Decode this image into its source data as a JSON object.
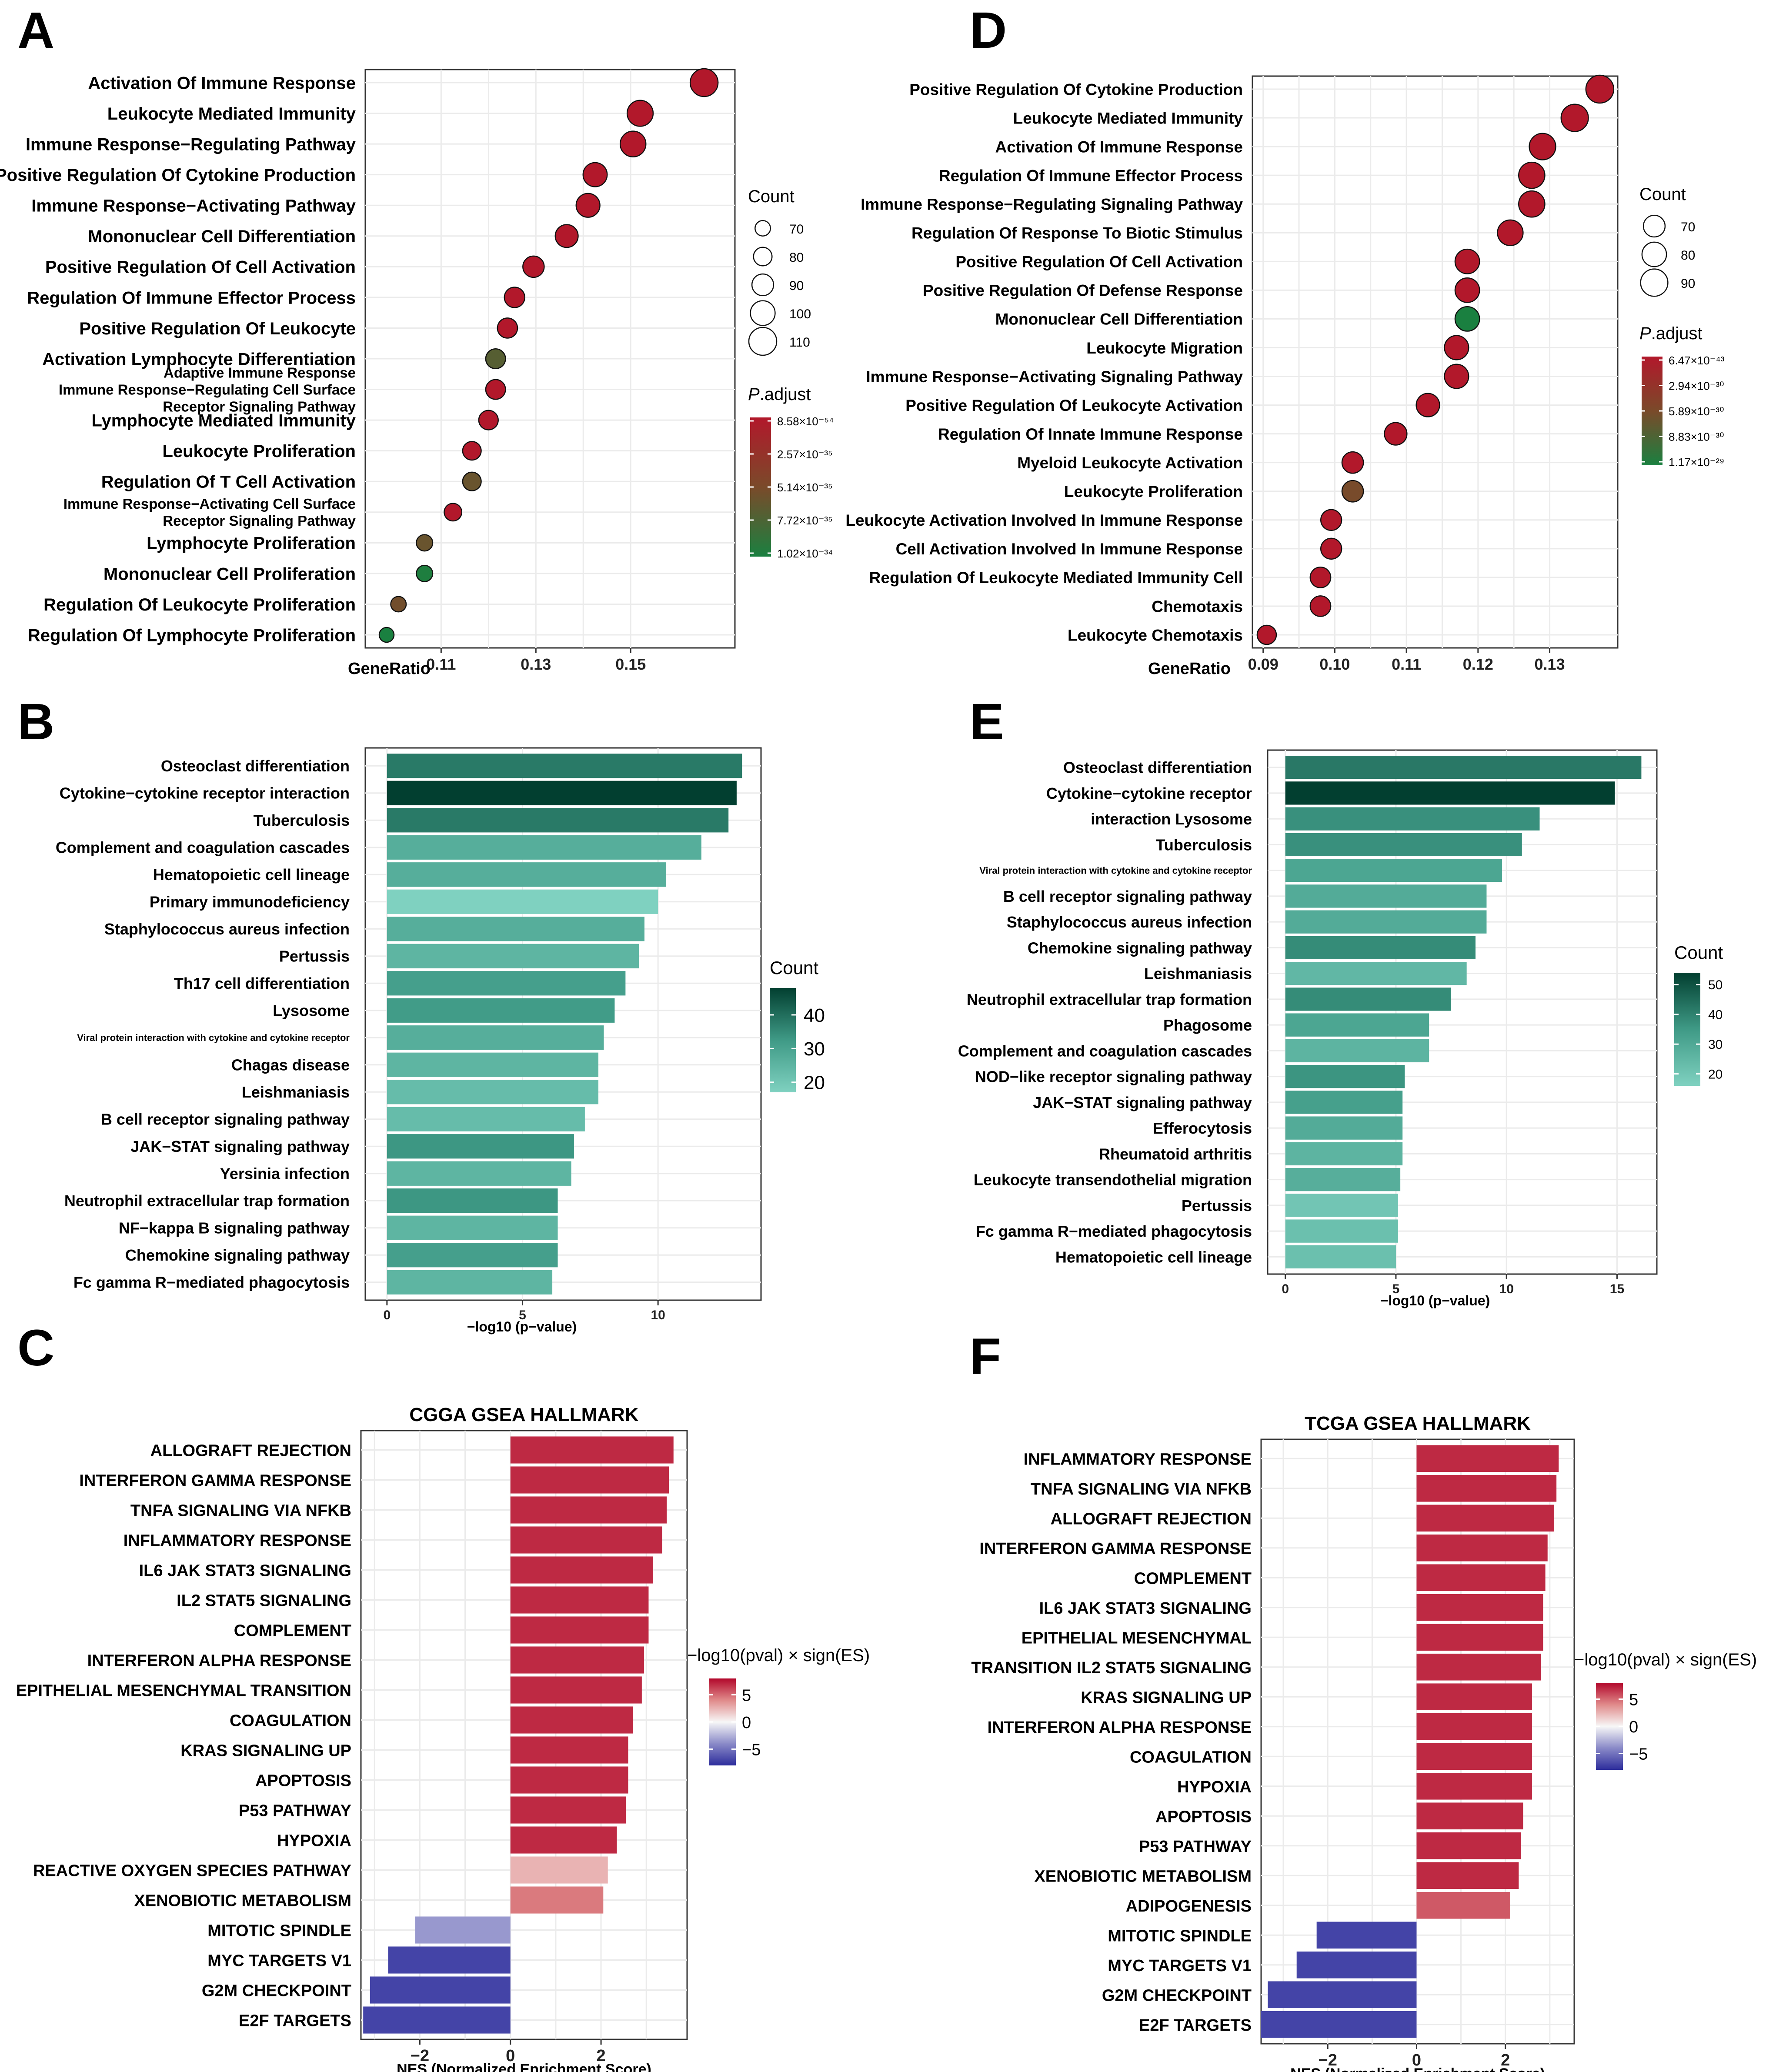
{
  "chart_data": [
    {
      "panel": "A",
      "type": "scatter",
      "xlabel": "GeneRatio",
      "x_ticks": [
        0.11,
        0.13,
        0.15
      ],
      "xlim": [
        0.094,
        0.172
      ],
      "terms": [
        {
          "label": "Activation Of Immune Response",
          "x": 0.1655,
          "count": 110,
          "p": 8.58e-54
        },
        {
          "label": "Leukocyte Mediated Immunity",
          "x": 0.152,
          "count": 104,
          "p": 8.58e-54
        },
        {
          "label": "Immune Response−Regulating Pathway",
          "x": 0.1505,
          "count": 103,
          "p": 8.58e-54
        },
        {
          "label": "Positive Regulation Of Cytokine Production",
          "x": 0.1425,
          "count": 98,
          "p": 8.58e-54
        },
        {
          "label": "Immune Response−Activating Pathway",
          "x": 0.141,
          "count": 97,
          "p": 8.58e-54
        },
        {
          "label": "Mononuclear Cell Differentiation",
          "x": 0.1365,
          "count": 94,
          "p": 8.58e-54
        },
        {
          "label": "Positive Regulation Of Cell Activation",
          "x": 0.1295,
          "count": 89,
          "p": 8.58e-54
        },
        {
          "label": "Regulation Of Immune Effector Process",
          "x": 0.1255,
          "count": 86,
          "p": 8.58e-54
        },
        {
          "label": "Positive Regulation Of Leukocyte",
          "x": 0.124,
          "count": 85,
          "p": 8.58e-54
        },
        {
          "label": "Activation Lymphocyte Differentiation",
          "x": 0.1215,
          "count": 84,
          "p": 7e-35
        },
        {
          "label": [
            "Adaptive Immune Response",
            "Immune Response−Regulating Cell Surface",
            "Receptor Signaling Pathway"
          ],
          "x": 0.1215,
          "count": 84,
          "p": 8.58e-54
        },
        {
          "label": "Lymphocyte Mediated Immunity",
          "x": 0.12,
          "count": 83,
          "p": 8.58e-54
        },
        {
          "label": "Leukocyte Proliferation",
          "x": 0.1165,
          "count": 80,
          "p": 8.58e-54
        },
        {
          "label": "Regulation Of T Cell Activation",
          "x": 0.1165,
          "count": 80,
          "p": 6e-35
        },
        {
          "label": [
            "Immune Response−Activating Cell Surface",
            "Receptor Signaling Pathway"
          ],
          "x": 0.1125,
          "count": 77,
          "p": 8.58e-54
        },
        {
          "label": "Lymphocyte Proliferation",
          "x": 0.1065,
          "count": 73,
          "p": 6e-35
        },
        {
          "label": "Mononuclear Cell Proliferation",
          "x": 0.1065,
          "count": 73,
          "p": 1e-34
        },
        {
          "label": "Regulation Of Leukocyte Proliferation",
          "x": 0.101,
          "count": 70,
          "p": 5.5e-35
        },
        {
          "label": "Regulation Of Lymphocyte Proliferation",
          "x": 0.0985,
          "count": 68,
          "p": 1.02e-34
        }
      ],
      "size_legend": {
        "title": "Count",
        "values": [
          70,
          80,
          90,
          100,
          110
        ]
      },
      "color_legend": {
        "title_italic": "P",
        "title_rest": ".adjust",
        "labels": [
          "8.58×10⁻⁵⁴",
          "2.57×10⁻³⁵",
          "5.14×10⁻³⁵",
          "7.72×10⁻³⁵",
          "1.02×10⁻³⁴"
        ],
        "range": [
          8.58e-54,
          1.02e-34
        ]
      }
    },
    {
      "panel": "D",
      "type": "scatter",
      "xlabel": "GeneRatio",
      "x_ticks": [
        0.09,
        0.1,
        0.11,
        0.12,
        0.13
      ],
      "xlim": [
        0.0885,
        0.1395
      ],
      "terms": [
        {
          "label": "Positive Regulation Of Cytokine Production",
          "x": 0.137,
          "count": 92,
          "p": 6.47e-43
        },
        {
          "label": "Leukocyte Mediated Immunity",
          "x": 0.1335,
          "count": 90,
          "p": 6.47e-43
        },
        {
          "label": "Activation Of Immune Response",
          "x": 0.129,
          "count": 87,
          "p": 6.47e-43
        },
        {
          "label": "Regulation Of Immune Effector Process",
          "x": 0.1275,
          "count": 86,
          "p": 6.47e-43
        },
        {
          "label": "Immune Response−Regulating Signaling Pathway",
          "x": 0.1275,
          "count": 86,
          "p": 6.47e-43
        },
        {
          "label": "Regulation Of Response To Biotic Stimulus",
          "x": 0.1245,
          "count": 84,
          "p": 6.47e-43
        },
        {
          "label": "Positive Regulation Of Cell Activation",
          "x": 0.1185,
          "count": 80,
          "p": 6.47e-43
        },
        {
          "label": "Positive Regulation Of Defense Response",
          "x": 0.1185,
          "count": 80,
          "p": 6.47e-43
        },
        {
          "label": "Mononuclear Cell Differentiation",
          "x": 0.1185,
          "count": 80,
          "p": 1.17e-29
        },
        {
          "label": "Leukocyte Migration",
          "x": 0.117,
          "count": 79,
          "p": 6.47e-43
        },
        {
          "label": "Immune Response−Activating Signaling Pathway",
          "x": 0.117,
          "count": 79,
          "p": 6.47e-43
        },
        {
          "label": "Positive Regulation Of Leukocyte Activation",
          "x": 0.113,
          "count": 76,
          "p": 6.47e-43
        },
        {
          "label": "Regulation Of Innate Immune Response",
          "x": 0.1085,
          "count": 73,
          "p": 6.47e-43
        },
        {
          "label": "Myeloid Leukocyte Activation",
          "x": 0.1025,
          "count": 69,
          "p": 6.47e-43
        },
        {
          "label": "Leukocyte Proliferation",
          "x": 0.1025,
          "count": 69,
          "p": 6e-30
        },
        {
          "label": "Leukocyte Activation Involved In Immune Response",
          "x": 0.0995,
          "count": 67,
          "p": 6.47e-43
        },
        {
          "label": "Cell Activation Involved In Immune Response",
          "x": 0.0995,
          "count": 67,
          "p": 6.47e-43
        },
        {
          "label": "Regulation Of Leukocyte Mediated Immunity Cell",
          "x": 0.098,
          "count": 66,
          "p": 6.47e-43
        },
        {
          "label": "Chemotaxis",
          "x": 0.098,
          "count": 66,
          "p": 6.47e-43
        },
        {
          "label": "Leukocyte Chemotaxis",
          "x": 0.0905,
          "count": 61,
          "p": 6.47e-43
        }
      ],
      "size_legend": {
        "title": "Count",
        "values": [
          70,
          80,
          90
        ]
      },
      "color_legend": {
        "title_italic": "P",
        "title_rest": ".adjust",
        "labels": [
          "6.47×10⁻⁴³",
          "2.94×10⁻³⁰",
          "5.89×10⁻³⁰",
          "8.83×10⁻³⁰",
          "1.17×10⁻²⁹"
        ],
        "range": [
          6.47e-43,
          1.17e-29
        ]
      }
    },
    {
      "panel": "B",
      "type": "bar",
      "xlabel": "−log10 (p−value)",
      "x_ticks": [
        0,
        5,
        10
      ],
      "xlim": [
        -0.8,
        13.8
      ],
      "categories": [
        "Osteoclast differentiation",
        "Cytokine−cytokine receptor interaction",
        "Tuberculosis",
        "Complement and coagulation cascades",
        "Hematopoietic cell lineage",
        "Primary immunodeficiency",
        "Staphylococcus aureus infection",
        "Pertussis",
        "Th17 cell differentiation",
        "Lysosome",
        "Viral protein interaction with cytokine and cytokine receptor",
        "Chagas disease",
        "Leishmaniasis",
        "B cell receptor signaling pathway",
        "JAK−STAT signaling pathway",
        "Yersinia infection",
        "Neutrophil extracellular trap formation",
        "NF−kappa B signaling pathway",
        "Chemokine signaling pathway",
        "Fc gamma R−mediated phagocytosis"
      ],
      "label_sizes": [
        36,
        36,
        36,
        36,
        36,
        36,
        36,
        36,
        36,
        36,
        22,
        36,
        36,
        36,
        36,
        36,
        36,
        36,
        36,
        36
      ],
      "values": [
        13.1,
        12.9,
        12.6,
        11.6,
        10.3,
        10.0,
        9.5,
        9.3,
        8.8,
        8.4,
        8.0,
        7.8,
        7.8,
        7.3,
        6.9,
        6.8,
        6.3,
        6.3,
        6.3,
        6.1
      ],
      "counts": [
        38,
        48,
        38,
        27,
        27,
        17,
        27,
        25,
        31,
        32,
        27,
        25,
        23,
        23,
        33,
        25,
        33,
        25,
        31,
        25
      ],
      "legend": {
        "title": "Count",
        "ticks": [
          40,
          30,
          20
        ],
        "range": [
          17,
          48
        ]
      }
    },
    {
      "panel": "E",
      "type": "bar",
      "xlabel": "−log10 (p−value)",
      "x_ticks": [
        0,
        5,
        10,
        15
      ],
      "xlim": [
        -0.8,
        16.8
      ],
      "categories": [
        "Osteoclast differentiation",
        "Cytokine−cytokine receptor",
        "interaction Lysosome",
        "Tuberculosis",
        "Viral protein interaction with cytokine and cytokine receptor",
        "B cell receptor signaling pathway",
        "Staphylococcus aureus infection",
        "Chemokine signaling pathway",
        "Leishmaniasis",
        "Neutrophil extracellular trap formation",
        "Phagosome",
        "Complement and coagulation cascades",
        "NOD−like receptor signaling pathway",
        "JAK−STAT signaling pathway",
        "Efferocytosis",
        "Rheumatoid arthritis",
        "Leukocyte transendothelial migration",
        "Pertussis",
        "Fc gamma R−mediated phagocytosis",
        "Hematopoietic cell lineage"
      ],
      "label_sizes": [
        36,
        36,
        36,
        36,
        22,
        36,
        36,
        36,
        36,
        36,
        36,
        36,
        36,
        36,
        36,
        36,
        36,
        36,
        36,
        36
      ],
      "values": [
        16.1,
        14.9,
        11.5,
        10.7,
        9.8,
        9.1,
        9.1,
        8.6,
        8.2,
        7.5,
        6.5,
        6.5,
        5.4,
        5.3,
        5.3,
        5.3,
        5.2,
        5.1,
        5.1,
        5.0
      ],
      "counts": [
        42,
        54,
        37,
        37,
        31,
        29,
        29,
        38,
        25,
        38,
        31,
        26,
        36,
        33,
        29,
        26,
        28,
        20,
        22,
        22
      ],
      "legend": {
        "title": "Count",
        "ticks": [
          50,
          40,
          30,
          20
        ],
        "range": [
          16,
          54
        ]
      }
    },
    {
      "panel": "C",
      "type": "bar",
      "title": "CGGA GSEA HALLMARK",
      "xlabel": "NES (Normalized Enrichment Score)",
      "x_ticks": [
        -2,
        0,
        2
      ],
      "xlim": [
        -3.3,
        3.9
      ],
      "categories": [
        "ALLOGRAFT REJECTION",
        "INTERFERON GAMMA RESPONSE",
        "TNFA SIGNALING VIA NFKB",
        "INFLAMMATORY RESPONSE",
        "IL6 JAK STAT3 SIGNALING",
        "IL2 STAT5 SIGNALING",
        "COMPLEMENT",
        "INTERFERON ALPHA RESPONSE",
        "EPITHELIAL MESENCHYMAL TRANSITION",
        "COAGULATION",
        "KRAS SIGNALING UP",
        "APOPTOSIS",
        "P53 PATHWAY",
        "HYPOXIA",
        "REACTIVE OXYGEN SPECIES PATHWAY",
        "XENOBIOTIC METABOLISM",
        "MITOTIC SPINDLE",
        "MYC TARGETS V1",
        "G2M CHECKPOINT",
        "E2F TARGETS"
      ],
      "values": [
        3.6,
        3.5,
        3.45,
        3.35,
        3.15,
        3.05,
        3.05,
        2.95,
        2.9,
        2.7,
        2.6,
        2.6,
        2.55,
        2.35,
        2.15,
        2.05,
        -2.1,
        -2.7,
        -3.1,
        -3.25
      ],
      "signed_logp": [
        7,
        7,
        7,
        7,
        7,
        7,
        7,
        7,
        7,
        7,
        7,
        7,
        7,
        7,
        2.5,
        4.5,
        -3.5,
        -7,
        -7,
        -7
      ],
      "legend": {
        "title": "−log10(pval) × sign(ES)",
        "ticks": [
          5,
          0,
          -5
        ],
        "tick_labels": [
          "5",
          "0",
          "−5"
        ],
        "range": [
          -8,
          8
        ]
      }
    },
    {
      "panel": "F",
      "type": "bar",
      "title": "TCGA GSEA HALLMARK",
      "xlabel": "NES (Normalized Enrichment Score)",
      "x_ticks": [
        -2,
        0,
        2
      ],
      "xlim": [
        -3.5,
        3.55
      ],
      "categories": [
        "INFLAMMATORY RESPONSE",
        "TNFA SIGNALING VIA NFKB",
        "ALLOGRAFT REJECTION",
        "INTERFERON GAMMA RESPONSE",
        "COMPLEMENT",
        "IL6 JAK STAT3 SIGNALING",
        "EPITHELIAL MESENCHYMAL",
        "TRANSITION  IL2  STAT5  SIGNALING",
        "KRAS SIGNALING UP",
        "INTERFERON ALPHA RESPONSE",
        "COAGULATION",
        "HYPOXIA",
        "APOPTOSIS",
        "P53 PATHWAY",
        "XENOBIOTIC METABOLISM",
        "ADIPOGENESIS",
        "MITOTIC SPINDLE",
        "MYC TARGETS V1",
        "G2M CHECKPOINT",
        "E2F TARGETS"
      ],
      "values": [
        3.2,
        3.15,
        3.1,
        2.95,
        2.9,
        2.85,
        2.85,
        2.8,
        2.6,
        2.6,
        2.6,
        2.6,
        2.4,
        2.35,
        2.3,
        2.1,
        -2.25,
        -2.7,
        -3.35,
        -3.5
      ],
      "signed_logp": [
        7,
        7,
        7,
        7,
        7,
        7,
        7,
        7,
        7,
        7,
        7,
        7,
        7,
        7,
        7,
        5.5,
        -7,
        -7,
        -7,
        -7
      ],
      "legend": {
        "title": "−log10(pval) × sign(ES)",
        "ticks": [
          5,
          0,
          -5
        ],
        "tick_labels": [
          "5",
          "0",
          "−5"
        ],
        "range": [
          -8,
          8
        ]
      }
    }
  ]
}
